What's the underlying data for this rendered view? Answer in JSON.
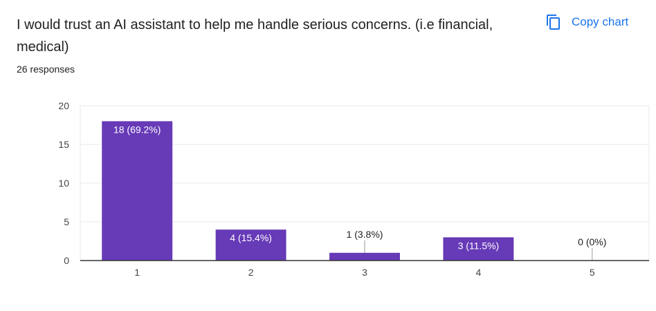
{
  "question": {
    "title": "I would trust an AI assistant to help me handle serious concerns. (i.e financial, medical)",
    "responses": "26 responses"
  },
  "actions": {
    "copy_chart_label": "Copy chart",
    "copy_chart_icon": "copy-icon"
  },
  "colors": {
    "bar": "#673ab7",
    "accent": "#1a73e8",
    "text": "#202124",
    "grid": "#e8eaed",
    "axis": "#333333"
  },
  "chart_data": {
    "type": "bar",
    "categories": [
      "1",
      "2",
      "3",
      "4",
      "5"
    ],
    "values": [
      18,
      4,
      1,
      3,
      0
    ],
    "data_labels": [
      "18 (69.2%)",
      "4 (15.4%)",
      "1 (3.8%)",
      "3 (11.5%)",
      "0 (0%)"
    ],
    "yticks": [
      0,
      5,
      10,
      15,
      20
    ],
    "ylim": [
      0,
      20
    ],
    "title": "",
    "xlabel": "",
    "ylabel": "",
    "grid": true,
    "legend": "none"
  }
}
